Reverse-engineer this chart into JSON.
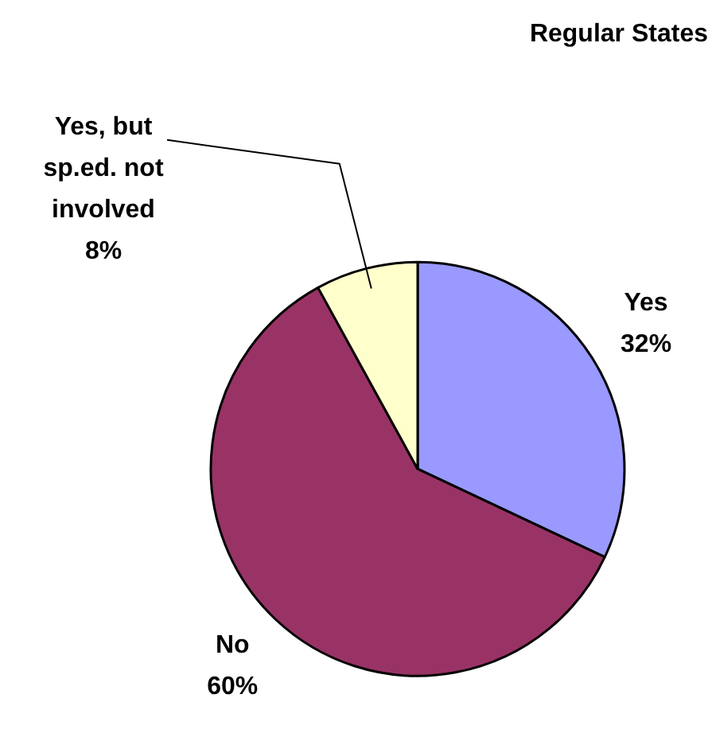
{
  "chart_data": {
    "type": "pie",
    "title": "Regular States",
    "categories": [
      "Yes",
      "No",
      "Yes, but sp.ed. not involved"
    ],
    "values": [
      32,
      60,
      8
    ],
    "value_labels": [
      "32%",
      "60%",
      "8%"
    ],
    "colors": [
      "#9999ff",
      "#993366",
      "#ffffcc"
    ],
    "legend": false
  }
}
